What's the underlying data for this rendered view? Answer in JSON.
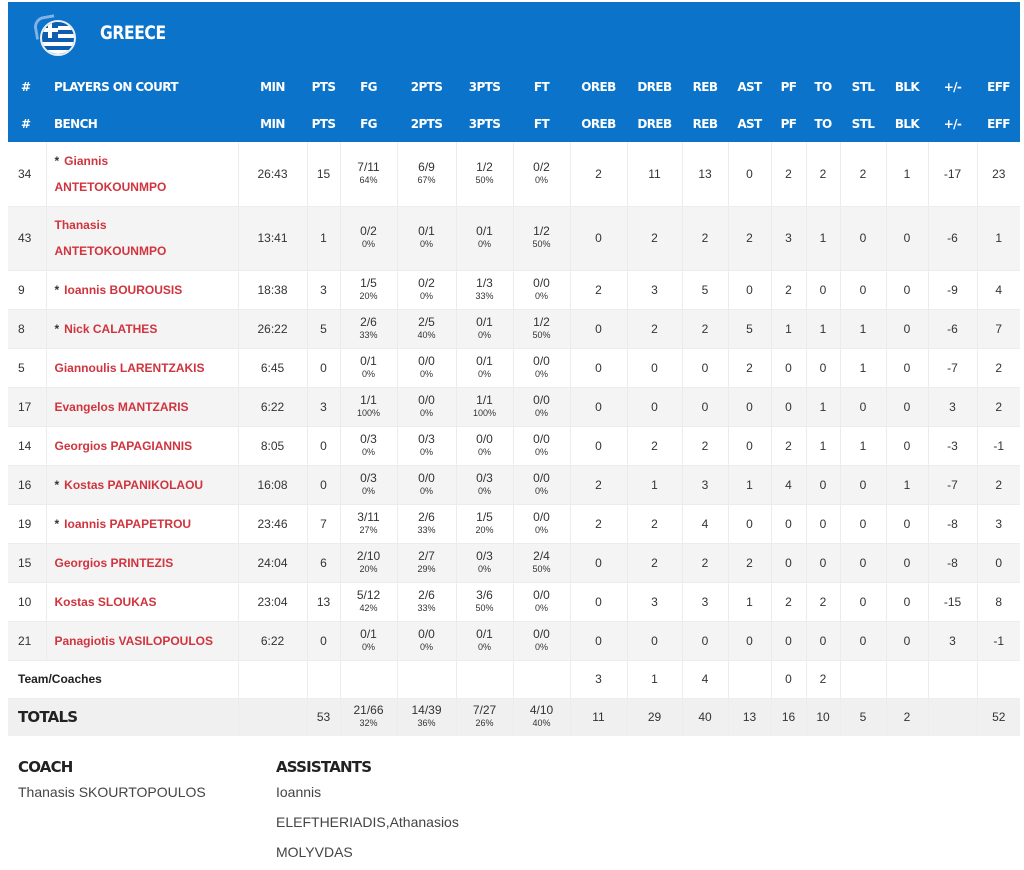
{
  "team": {
    "name": "GREECE",
    "flag_icon": "greece-flag-icon",
    "bar_color": "#0b73c9"
  },
  "headers": {
    "court": [
      "#",
      "PLAYERS ON COURT",
      "MIN",
      "PTS",
      "FG",
      "2PTS",
      "3PTS",
      "FT",
      "OREB",
      "DREB",
      "REB",
      "AST",
      "PF",
      "TO",
      "STL",
      "BLK",
      "+/-",
      "EFF"
    ],
    "bench": [
      "#",
      "BENCH",
      "MIN",
      "PTS",
      "FG",
      "2PTS",
      "3PTS",
      "FT",
      "OREB",
      "DREB",
      "REB",
      "AST",
      "PF",
      "TO",
      "STL",
      "BLK",
      "+/-",
      "EFF"
    ]
  },
  "players": [
    {
      "num": "34",
      "starter": true,
      "first": "Giannis",
      "last": "ANTETOKOUNMPO",
      "two_line": true,
      "min": "26:43",
      "pts": "15",
      "fg": "7/11",
      "fg_pct": "64%",
      "p2": "6/9",
      "p2_pct": "67%",
      "p3": "1/2",
      "p3_pct": "50%",
      "ft": "0/2",
      "ft_pct": "0%",
      "oreb": "2",
      "dreb": "11",
      "reb": "13",
      "ast": "0",
      "pf": "2",
      "to": "2",
      "stl": "2",
      "blk": "1",
      "pm": "-17",
      "eff": "23"
    },
    {
      "num": "43",
      "starter": false,
      "first": "Thanasis",
      "last": "ANTETOKOUNMPO",
      "two_line": true,
      "min": "13:41",
      "pts": "1",
      "fg": "0/2",
      "fg_pct": "0%",
      "p2": "0/1",
      "p2_pct": "0%",
      "p3": "0/1",
      "p3_pct": "0%",
      "ft": "1/2",
      "ft_pct": "50%",
      "oreb": "0",
      "dreb": "2",
      "reb": "2",
      "ast": "2",
      "pf": "3",
      "to": "1",
      "stl": "0",
      "blk": "0",
      "pm": "-6",
      "eff": "1"
    },
    {
      "num": "9",
      "starter": true,
      "first": "Ioannis",
      "last": "BOUROUSIS",
      "two_line": false,
      "min": "18:38",
      "pts": "3",
      "fg": "1/5",
      "fg_pct": "20%",
      "p2": "0/2",
      "p2_pct": "0%",
      "p3": "1/3",
      "p3_pct": "33%",
      "ft": "0/0",
      "ft_pct": "0%",
      "oreb": "2",
      "dreb": "3",
      "reb": "5",
      "ast": "0",
      "pf": "2",
      "to": "0",
      "stl": "0",
      "blk": "0",
      "pm": "-9",
      "eff": "4"
    },
    {
      "num": "8",
      "starter": true,
      "first": "Nick",
      "last": "CALATHES",
      "two_line": false,
      "min": "26:22",
      "pts": "5",
      "fg": "2/6",
      "fg_pct": "33%",
      "p2": "2/5",
      "p2_pct": "40%",
      "p3": "0/1",
      "p3_pct": "0%",
      "ft": "1/2",
      "ft_pct": "50%",
      "oreb": "0",
      "dreb": "2",
      "reb": "2",
      "ast": "5",
      "pf": "1",
      "to": "1",
      "stl": "1",
      "blk": "0",
      "pm": "-6",
      "eff": "7"
    },
    {
      "num": "5",
      "starter": false,
      "first": "Giannoulis",
      "last": "LARENTZAKIS",
      "two_line": false,
      "min": "6:45",
      "pts": "0",
      "fg": "0/1",
      "fg_pct": "0%",
      "p2": "0/0",
      "p2_pct": "0%",
      "p3": "0/1",
      "p3_pct": "0%",
      "ft": "0/0",
      "ft_pct": "0%",
      "oreb": "0",
      "dreb": "0",
      "reb": "0",
      "ast": "2",
      "pf": "0",
      "to": "0",
      "stl": "1",
      "blk": "0",
      "pm": "-7",
      "eff": "2"
    },
    {
      "num": "17",
      "starter": false,
      "first": "Evangelos",
      "last": "MANTZARIS",
      "two_line": false,
      "min": "6:22",
      "pts": "3",
      "fg": "1/1",
      "fg_pct": "100%",
      "p2": "0/0",
      "p2_pct": "0%",
      "p3": "1/1",
      "p3_pct": "100%",
      "ft": "0/0",
      "ft_pct": "0%",
      "oreb": "0",
      "dreb": "0",
      "reb": "0",
      "ast": "0",
      "pf": "0",
      "to": "1",
      "stl": "0",
      "blk": "0",
      "pm": "3",
      "eff": "2"
    },
    {
      "num": "14",
      "starter": false,
      "first": "Georgios",
      "last": "PAPAGIANNIS",
      "two_line": false,
      "min": "8:05",
      "pts": "0",
      "fg": "0/3",
      "fg_pct": "0%",
      "p2": "0/3",
      "p2_pct": "0%",
      "p3": "0/0",
      "p3_pct": "0%",
      "ft": "0/0",
      "ft_pct": "0%",
      "oreb": "0",
      "dreb": "2",
      "reb": "2",
      "ast": "0",
      "pf": "2",
      "to": "1",
      "stl": "1",
      "blk": "0",
      "pm": "-3",
      "eff": "-1"
    },
    {
      "num": "16",
      "starter": true,
      "first": "Kostas",
      "last": "PAPANIKOLAOU",
      "two_line": false,
      "min": "16:08",
      "pts": "0",
      "fg": "0/3",
      "fg_pct": "0%",
      "p2": "0/0",
      "p2_pct": "0%",
      "p3": "0/3",
      "p3_pct": "0%",
      "ft": "0/0",
      "ft_pct": "0%",
      "oreb": "2",
      "dreb": "1",
      "reb": "3",
      "ast": "1",
      "pf": "4",
      "to": "0",
      "stl": "0",
      "blk": "1",
      "pm": "-7",
      "eff": "2"
    },
    {
      "num": "19",
      "starter": true,
      "first": "Ioannis",
      "last": "PAPAPETROU",
      "two_line": false,
      "min": "23:46",
      "pts": "7",
      "fg": "3/11",
      "fg_pct": "27%",
      "p2": "2/6",
      "p2_pct": "33%",
      "p3": "1/5",
      "p3_pct": "20%",
      "ft": "0/0",
      "ft_pct": "0%",
      "oreb": "2",
      "dreb": "2",
      "reb": "4",
      "ast": "0",
      "pf": "0",
      "to": "0",
      "stl": "0",
      "blk": "0",
      "pm": "-8",
      "eff": "3"
    },
    {
      "num": "15",
      "starter": false,
      "first": "Georgios",
      "last": "PRINTEZIS",
      "two_line": false,
      "min": "24:04",
      "pts": "6",
      "fg": "2/10",
      "fg_pct": "20%",
      "p2": "2/7",
      "p2_pct": "29%",
      "p3": "0/3",
      "p3_pct": "0%",
      "ft": "2/4",
      "ft_pct": "50%",
      "oreb": "0",
      "dreb": "2",
      "reb": "2",
      "ast": "2",
      "pf": "0",
      "to": "0",
      "stl": "0",
      "blk": "0",
      "pm": "-8",
      "eff": "0"
    },
    {
      "num": "10",
      "starter": false,
      "first": "Kostas",
      "last": "SLOUKAS",
      "two_line": false,
      "min": "23:04",
      "pts": "13",
      "fg": "5/12",
      "fg_pct": "42%",
      "p2": "2/6",
      "p2_pct": "33%",
      "p3": "3/6",
      "p3_pct": "50%",
      "ft": "0/0",
      "ft_pct": "0%",
      "oreb": "0",
      "dreb": "3",
      "reb": "3",
      "ast": "1",
      "pf": "2",
      "to": "2",
      "stl": "0",
      "blk": "0",
      "pm": "-15",
      "eff": "8"
    },
    {
      "num": "21",
      "starter": false,
      "first": "Panagiotis",
      "last": "VASILOPOULOS",
      "two_line": false,
      "min": "6:22",
      "pts": "0",
      "fg": "0/1",
      "fg_pct": "0%",
      "p2": "0/0",
      "p2_pct": "0%",
      "p3": "0/1",
      "p3_pct": "0%",
      "ft": "0/0",
      "ft_pct": "0%",
      "oreb": "0",
      "dreb": "0",
      "reb": "0",
      "ast": "0",
      "pf": "0",
      "to": "0",
      "stl": "0",
      "blk": "0",
      "pm": "3",
      "eff": "-1"
    }
  ],
  "team_coaches": {
    "label": "Team/Coaches",
    "oreb": "3",
    "dreb": "1",
    "reb": "4",
    "pf": "0",
    "to": "2"
  },
  "totals": {
    "label": "TOTALS",
    "pts": "53",
    "fg": "21/66",
    "fg_pct": "32%",
    "p2": "14/39",
    "p2_pct": "36%",
    "p3": "7/27",
    "p3_pct": "26%",
    "ft": "4/10",
    "ft_pct": "40%",
    "oreb": "11",
    "dreb": "29",
    "reb": "40",
    "ast": "13",
    "pf": "16",
    "to": "10",
    "stl": "5",
    "blk": "2",
    "eff": "52"
  },
  "staff": {
    "coach_label": "COACH",
    "coach_name": "Thanasis SKOURTOPOULOS",
    "assistants_label": "ASSISTANTS",
    "assistants_lines": [
      "Ioannis",
      "ELEFTHERIADIS,Athanasios",
      "MOLYVDAS"
    ]
  },
  "colors": {
    "header_blue": "#0b73c9",
    "player_name_red": "#d0343e",
    "row_alt": "#f4f4f4"
  }
}
